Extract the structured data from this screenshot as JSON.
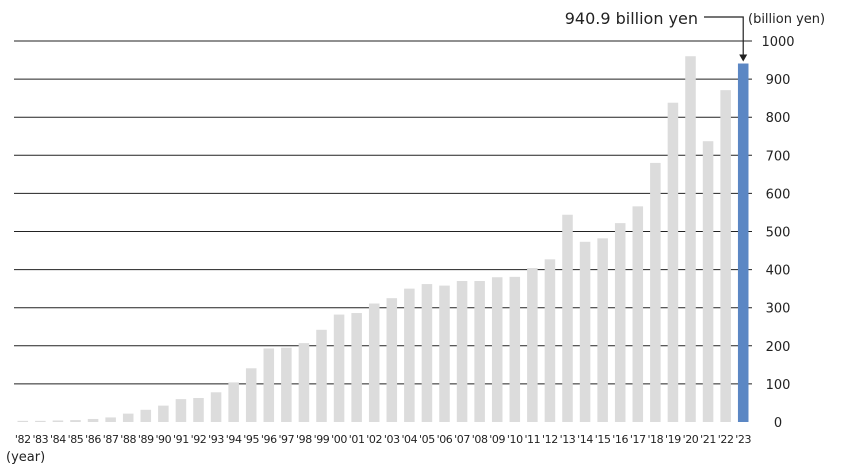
{
  "chart_data": {
    "type": "bar",
    "ylabel_unit": "(billion yen)",
    "xlabel_unit": "(year)",
    "ylim": [
      0,
      1000
    ],
    "yticks": [
      0,
      100,
      200,
      300,
      400,
      500,
      600,
      700,
      800,
      900,
      1000
    ],
    "grid": true,
    "categories": [
      "'82",
      "'83",
      "'84",
      "'85",
      "'86",
      "'87",
      "'88",
      "'89",
      "'90",
      "'91",
      "'92",
      "'93",
      "'94",
      "'95",
      "'96",
      "'97",
      "'98",
      "'99",
      "'00",
      "'01",
      "'02",
      "'03",
      "'04",
      "'05",
      "'06",
      "'07",
      "'08",
      "'09",
      "'10",
      "'11",
      "'12",
      "'13",
      "'14",
      "'15",
      "'16",
      "'17",
      "'18",
      "'19",
      "'20",
      "'21",
      "'22",
      "'23"
    ],
    "values": [
      3,
      3,
      4,
      5,
      8,
      12,
      22,
      32,
      43,
      60,
      63,
      78,
      104,
      141,
      193,
      195,
      207,
      242,
      282,
      286,
      311,
      325,
      350,
      362,
      358,
      370,
      370,
      380,
      381,
      404,
      427,
      544,
      473,
      482,
      522,
      566,
      680,
      838,
      960,
      737,
      871,
      940.9
    ],
    "highlight_index": 41,
    "colors": {
      "bar": "#dcdcdc",
      "highlight": "#5b87c4",
      "grid": "#222222"
    },
    "annotation": {
      "text": "940.9 billion yen",
      "target": "'23"
    }
  }
}
